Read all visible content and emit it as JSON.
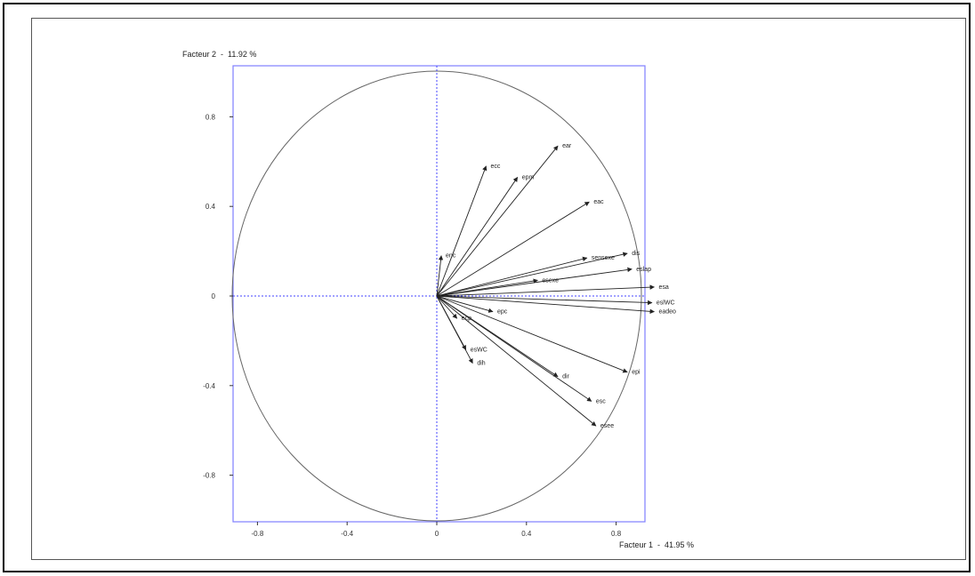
{
  "chart_data": {
    "type": "scatter",
    "subtype": "correlation-circle",
    "xlabel": "Facteur 1  -  41.95 %",
    "ylabel": "Facteur 2  -  11.92 %",
    "xlim": [
      -1.0,
      1.0
    ],
    "ylim": [
      -1.0,
      1.0
    ],
    "x_ticks": [
      -0.8,
      -0.4,
      0,
      0.4,
      0.8
    ],
    "y_ticks": [
      0.8,
      0.4,
      0,
      -0.4,
      -0.8
    ],
    "x_tick_labels": [
      "-0.8",
      "-0.4",
      "0",
      "0.4",
      "0.8"
    ],
    "y_tick_labels": [
      "0.8",
      "0.4",
      "0",
      "-0.4",
      "-0.8"
    ],
    "grid": false,
    "variables": [
      {
        "label": "ear",
        "x": 0.54,
        "y": 0.67
      },
      {
        "label": "ecc",
        "x": 0.22,
        "y": 0.58
      },
      {
        "label": "epm",
        "x": 0.36,
        "y": 0.53
      },
      {
        "label": "eac",
        "x": 0.68,
        "y": 0.42
      },
      {
        "label": "enc",
        "x": 0.02,
        "y": 0.18
      },
      {
        "label": "sensexe",
        "x": 0.67,
        "y": 0.17
      },
      {
        "label": "dis",
        "x": 0.85,
        "y": 0.19
      },
      {
        "label": "eslap",
        "x": 0.87,
        "y": 0.12
      },
      {
        "label": "esexe",
        "x": 0.45,
        "y": 0.07
      },
      {
        "label": "esa",
        "x": 0.97,
        "y": 0.04
      },
      {
        "label": "eslWC",
        "x": 0.96,
        "y": -0.03
      },
      {
        "label": "eadeo",
        "x": 0.97,
        "y": -0.07
      },
      {
        "label": "epc",
        "x": 0.25,
        "y": -0.07
      },
      {
        "label": "ecp",
        "x": 0.09,
        "y": -0.1
      },
      {
        "label": "esWC",
        "x": 0.13,
        "y": -0.24
      },
      {
        "label": "dih",
        "x": 0.16,
        "y": -0.3
      },
      {
        "label": "dir",
        "x": 0.54,
        "y": -0.36
      },
      {
        "label": "epi",
        "x": 0.85,
        "y": -0.34
      },
      {
        "label": "esc",
        "x": 0.69,
        "y": -0.47
      },
      {
        "label": "esee",
        "x": 0.71,
        "y": -0.58
      }
    ],
    "colors": {
      "frame": "#7f7fff",
      "circle": "#666666",
      "arrows": "#222222",
      "zero_lines": "#4444ff"
    }
  }
}
